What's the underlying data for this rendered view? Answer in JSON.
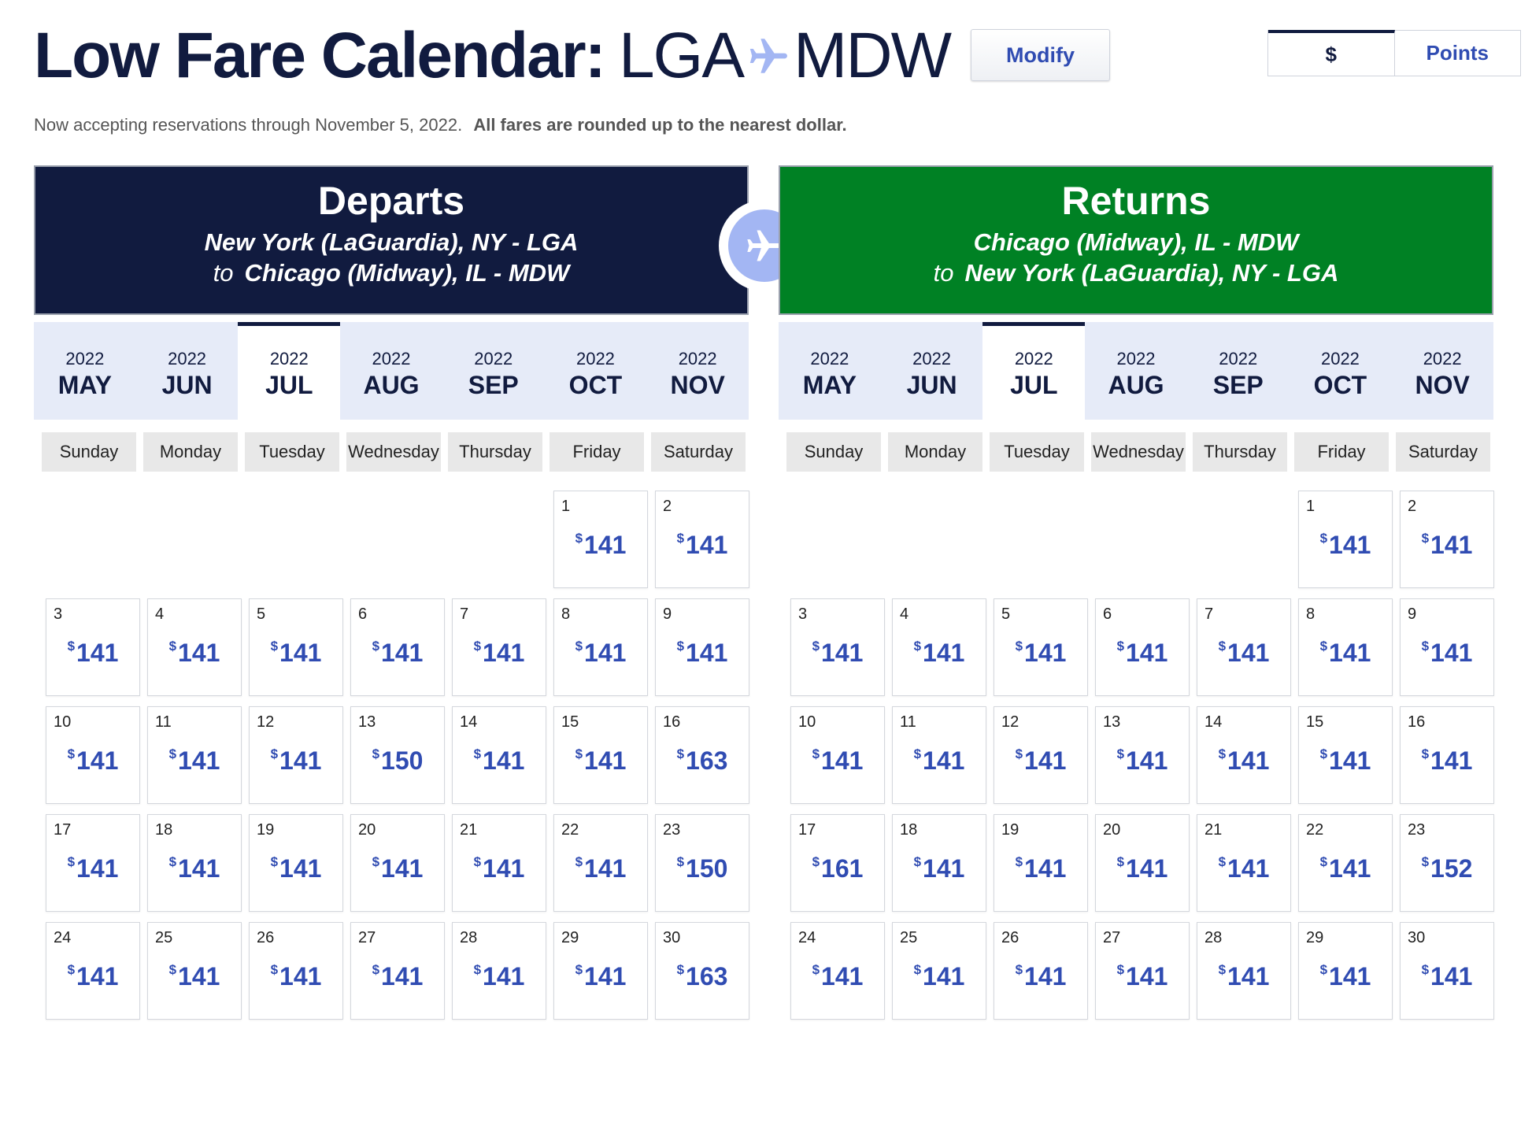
{
  "header": {
    "title_bold": "Low Fare Calendar:",
    "origin": "LGA",
    "destination": "MDW",
    "modify_label": "Modify",
    "currency_options": [
      "$",
      "Points"
    ],
    "selected_currency": "$"
  },
  "note": {
    "text": "Now accepting reservations through November 5, 2022.",
    "bold": "All fares are rounded up to the nearest dollar."
  },
  "weekdays": [
    "Sunday",
    "Monday",
    "Tuesday",
    "Wednesday",
    "Thursday",
    "Friday",
    "Saturday"
  ],
  "months": [
    {
      "year": "2022",
      "month": "MAY"
    },
    {
      "year": "2022",
      "month": "JUN"
    },
    {
      "year": "2022",
      "month": "JUL"
    },
    {
      "year": "2022",
      "month": "AUG"
    },
    {
      "year": "2022",
      "month": "SEP"
    },
    {
      "year": "2022",
      "month": "OCT"
    },
    {
      "year": "2022",
      "month": "NOV"
    }
  ],
  "selected_month": "JUL",
  "departs": {
    "heading": "Departs",
    "from": "New York (LaGuardia), NY - LGA",
    "to_word": "to",
    "to": "Chicago (Midway), IL - MDW",
    "leading_blanks": 5,
    "prices": [
      141,
      141,
      141,
      141,
      141,
      141,
      141,
      141,
      141,
      141,
      141,
      141,
      150,
      141,
      141,
      163,
      141,
      141,
      141,
      141,
      141,
      141,
      150,
      141,
      141,
      141,
      141,
      141,
      141,
      163
    ]
  },
  "returns": {
    "heading": "Returns",
    "from": "Chicago (Midway), IL - MDW",
    "to_word": "to",
    "to": "New York (LaGuardia), NY - LGA",
    "leading_blanks": 5,
    "prices": [
      141,
      141,
      141,
      141,
      141,
      141,
      141,
      141,
      141,
      141,
      141,
      141,
      141,
      141,
      141,
      141,
      161,
      141,
      141,
      141,
      141,
      141,
      152,
      141,
      141,
      141,
      141,
      141,
      141,
      141
    ]
  },
  "currency_symbol": "$",
  "colors": {
    "navy": "#111b3f",
    "green": "#008124",
    "link": "#304cb2",
    "plane": "#a3b6f3"
  },
  "icons": [
    "plane-icon"
  ]
}
